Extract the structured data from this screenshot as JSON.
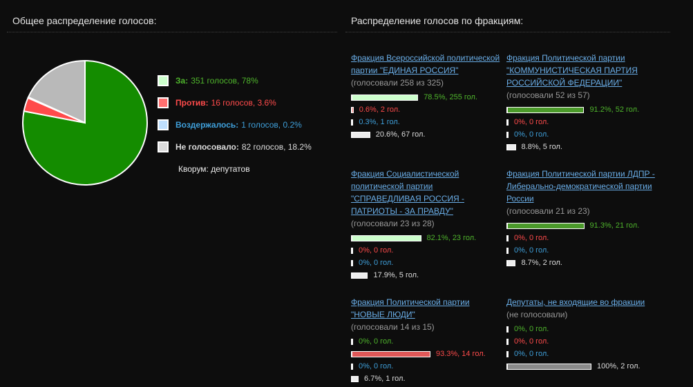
{
  "left_title": "Общее распределение голосов:",
  "chart_data": {
    "type": "pie",
    "categories": [
      "За:",
      "Против:",
      "Воздержалось:",
      "Не голосовало:"
    ],
    "values": [
      351,
      16,
      1,
      82
    ],
    "value_labels": [
      "351 голосов, 78%",
      "16 голосов, 3.6%",
      "1 голосов, 0.2%",
      "82 голосов, 18.2%"
    ],
    "colors": [
      "#148c00",
      "#ff4b4b",
      "#9fd0ff",
      "#b9b9b9"
    ],
    "legend_colors": [
      "#ccffcc",
      "#ff7070",
      "#bfe0ff",
      "#dddddd"
    ]
  },
  "quorum": "Кворум: депутатов",
  "right_title": "Распределение голосов по фракциям:",
  "factions": [
    {
      "name": "Фракция Всероссийской политической партии \"ЕДИНАЯ РОССИЯ\"",
      "subtitle": "(голосовали 258 из 325)",
      "rows": [
        {
          "value": 78.5,
          "label": "78.5%, 255 гол.",
          "color": "#ccffcc"
        },
        {
          "value": 0.6,
          "label": "0.6%, 2 гол.",
          "color": "#ff7070"
        },
        {
          "value": 0.3,
          "label": "0.3%, 1 гол.",
          "color": "#bfe0ff"
        },
        {
          "value": 20.6,
          "label": "20.6%, 67 гол.",
          "color": "#eeeeee"
        }
      ]
    },
    {
      "name": "Фракция Политической партии \"КОММУНИСТИЧЕСКАЯ ПАРТИЯ РОССИЙСКОЙ ФЕДЕРАЦИИ\"",
      "subtitle": "(голосовали 52 из 57)",
      "rows": [
        {
          "value": 91.2,
          "label": "91.2%, 52 гол.",
          "color": "#4b9a2a"
        },
        {
          "value": 0,
          "label": "0%, 0 гол.",
          "color": "#ff7070"
        },
        {
          "value": 0,
          "label": "0%, 0 гол.",
          "color": "#bfe0ff"
        },
        {
          "value": 8.8,
          "label": "8.8%, 5 гол.",
          "color": "#eeeeee"
        }
      ]
    },
    {
      "name": "Фракция Социалистической политической партии \"СПРАВЕДЛИВАЯ РОССИЯ - ПАТРИОТЫ - ЗА ПРАВДУ\"",
      "subtitle": "(голосовали 23 из 28)",
      "rows": [
        {
          "value": 82.1,
          "label": "82.1%, 23 гол.",
          "color": "#ccffcc"
        },
        {
          "value": 0,
          "label": "0%, 0 гол.",
          "color": "#ff7070"
        },
        {
          "value": 0,
          "label": "0%, 0 гол.",
          "color": "#bfe0ff"
        },
        {
          "value": 17.9,
          "label": "17.9%, 5 гол.",
          "color": "#eeeeee"
        }
      ]
    },
    {
      "name": "Фракция Политической партии ЛДПР - Либерально-демократической партии России",
      "subtitle": "(голосовали 21 из 23)",
      "rows": [
        {
          "value": 91.3,
          "label": "91.3%, 21 гол.",
          "color": "#4b9a2a"
        },
        {
          "value": 0,
          "label": "0%, 0 гол.",
          "color": "#ff7070"
        },
        {
          "value": 0,
          "label": "0%, 0 гол.",
          "color": "#bfe0ff"
        },
        {
          "value": 8.7,
          "label": "8.7%, 2 гол.",
          "color": "#eeeeee"
        }
      ]
    },
    {
      "name": "Фракция Политической партии \"НОВЫЕ ЛЮДИ\"",
      "subtitle": "(голосовали 14 из 15)",
      "rows": [
        {
          "value": 0,
          "label": "0%, 0 гол.",
          "color": "#ccffcc"
        },
        {
          "value": 93.3,
          "label": "93.3%, 14 гол.",
          "color": "#e05858"
        },
        {
          "value": 0,
          "label": "0%, 0 гол.",
          "color": "#bfe0ff"
        },
        {
          "value": 6.7,
          "label": "6.7%, 1 гол.",
          "color": "#eeeeee"
        }
      ]
    },
    {
      "name": "Депутаты, не входящие во фракции",
      "subtitle": "(не голосовали)",
      "rows": [
        {
          "value": 0,
          "label": "0%, 0 гол.",
          "color": "#ccffcc"
        },
        {
          "value": 0,
          "label": "0%, 0 гол.",
          "color": "#ff7070"
        },
        {
          "value": 0,
          "label": "0%, 0 гол.",
          "color": "#bfe0ff"
        },
        {
          "value": 100,
          "label": "100%, 2 гол.",
          "color": "#8a8a8a"
        }
      ]
    }
  ]
}
